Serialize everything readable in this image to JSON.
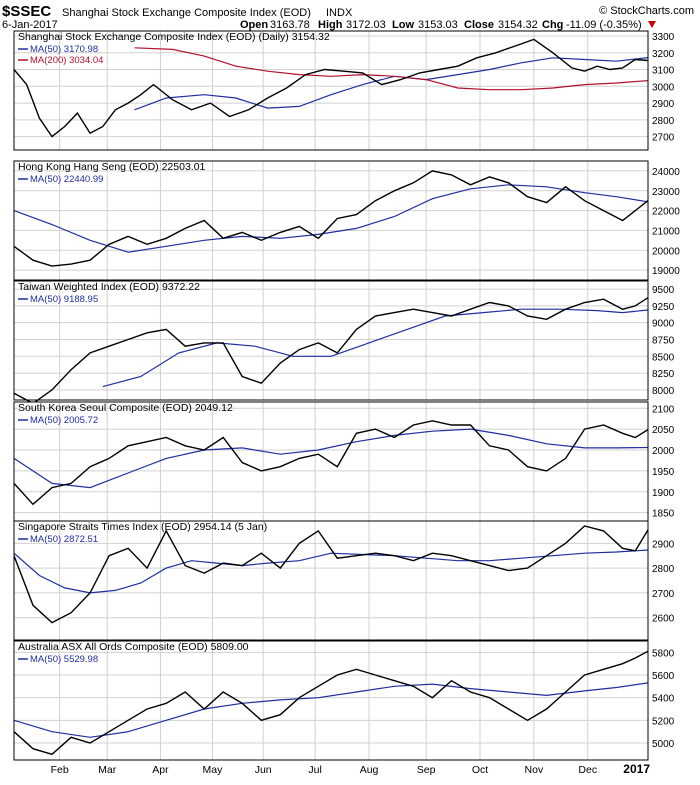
{
  "header": {
    "symbol": "$SSEC",
    "name": "Shanghai Stock Exchange Composite Index (EOD)",
    "exchange": "INDX",
    "watermark": "© StockCharts.com",
    "date": "6-Jan-2017",
    "open_label": "Open",
    "open": "3163.78",
    "high_label": "High",
    "high": "3172.03",
    "low_label": "Low",
    "low": "3153.03",
    "close_label": "Close",
    "close": "3154.32",
    "chg_label": "Chg",
    "chg": "-11.09 (-0.35%)",
    "down_color": "#cc0000"
  },
  "colors": {
    "price": "#000000",
    "ma50": "#1f2ea0",
    "ma200": "#b0112e",
    "grid": "#d0d0d0",
    "border": "#000000"
  },
  "chart_data": [
    {
      "type": "line",
      "title": "Shanghai Stock Exchange Composite Index (EOD) (Daily) 3154.32",
      "legend": [
        "MA(50) 3170.98",
        "MA(200) 3034.04"
      ],
      "yticks": [
        2700,
        2800,
        2900,
        3000,
        3100,
        3200,
        3300
      ],
      "ylim": [
        2620,
        3330
      ],
      "price_t": [
        0,
        0.02,
        0.04,
        0.06,
        0.08,
        0.1,
        0.12,
        0.14,
        0.16,
        0.18,
        0.2,
        0.22,
        0.25,
        0.28,
        0.31,
        0.34,
        0.37,
        0.4,
        0.43,
        0.46,
        0.49,
        0.52,
        0.55,
        0.58,
        0.61,
        0.64,
        0.67,
        0.7,
        0.73,
        0.76,
        0.79,
        0.82,
        0.85,
        0.88,
        0.9,
        0.92,
        0.94,
        0.96,
        0.98,
        1.0
      ],
      "price_v": [
        3100,
        3010,
        2810,
        2700,
        2760,
        2840,
        2720,
        2760,
        2860,
        2900,
        2950,
        3010,
        2920,
        2860,
        2900,
        2820,
        2860,
        2930,
        2990,
        3070,
        3100,
        3090,
        3080,
        3010,
        3040,
        3080,
        3100,
        3120,
        3170,
        3200,
        3240,
        3280,
        3200,
        3110,
        3090,
        3120,
        3100,
        3110,
        3160,
        3154
      ],
      "ma_t": [
        [
          0.19,
          0.24,
          0.3,
          0.35,
          0.4,
          0.45,
          0.5,
          0.55,
          0.6,
          0.65,
          0.7,
          0.75,
          0.8,
          0.85,
          0.9,
          0.95,
          1.0
        ],
        [
          0.19,
          0.25,
          0.3,
          0.35,
          0.4,
          0.45,
          0.5,
          0.55,
          0.6,
          0.65,
          0.7,
          0.75,
          0.8,
          0.85,
          0.9,
          0.95,
          1.0
        ]
      ],
      "ma_v": [
        [
          2860,
          2930,
          2950,
          2930,
          2870,
          2880,
          2950,
          3010,
          3060,
          3040,
          3070,
          3100,
          3140,
          3170,
          3160,
          3150,
          3171
        ],
        [
          3230,
          3220,
          3180,
          3120,
          3090,
          3070,
          3060,
          3070,
          3060,
          3040,
          2990,
          2980,
          2980,
          2990,
          3010,
          3020,
          3034
        ]
      ]
    },
    {
      "type": "line",
      "title": "Hong Kong Hang Seng (EOD) 22503.01",
      "legend": [
        "MA(50) 22440.99"
      ],
      "yticks": [
        19000,
        20000,
        21000,
        22000,
        23000,
        24000
      ],
      "ylim": [
        18500,
        24500
      ],
      "price_t": [
        0,
        0.03,
        0.06,
        0.09,
        0.12,
        0.15,
        0.18,
        0.21,
        0.24,
        0.27,
        0.3,
        0.33,
        0.36,
        0.39,
        0.42,
        0.45,
        0.48,
        0.51,
        0.54,
        0.57,
        0.6,
        0.63,
        0.66,
        0.69,
        0.72,
        0.75,
        0.78,
        0.81,
        0.84,
        0.87,
        0.9,
        0.93,
        0.96,
        0.98,
        1.0
      ],
      "price_v": [
        20200,
        19500,
        19200,
        19300,
        19500,
        20300,
        20700,
        20300,
        20600,
        21100,
        21500,
        20600,
        20900,
        20500,
        20900,
        21200,
        20600,
        21600,
        21800,
        22500,
        23000,
        23400,
        24000,
        23800,
        23300,
        23700,
        23400,
        22700,
        22400,
        23200,
        22500,
        22000,
        21500,
        22000,
        22503
      ],
      "ma_t": [
        [
          0,
          0.06,
          0.12,
          0.18,
          0.24,
          0.3,
          0.36,
          0.42,
          0.48,
          0.54,
          0.6,
          0.66,
          0.72,
          0.78,
          0.84,
          0.9,
          0.95,
          1.0
        ]
      ],
      "ma_v": [
        [
          22000,
          21300,
          20500,
          19900,
          20200,
          20500,
          20700,
          20600,
          20800,
          21100,
          21700,
          22600,
          23100,
          23300,
          23200,
          22900,
          22700,
          22441
        ]
      ]
    },
    {
      "type": "line",
      "title": "Taiwan Weighted Index (EOD) 9372.22",
      "legend": [
        "MA(50) 9188.95"
      ],
      "yticks": [
        8000,
        8250,
        8500,
        8750,
        9000,
        9250,
        9500
      ],
      "ylim": [
        7850,
        9620
      ],
      "price_t": [
        0,
        0.03,
        0.06,
        0.09,
        0.12,
        0.15,
        0.18,
        0.21,
        0.24,
        0.27,
        0.3,
        0.33,
        0.36,
        0.39,
        0.42,
        0.45,
        0.48,
        0.51,
        0.54,
        0.57,
        0.6,
        0.63,
        0.66,
        0.69,
        0.72,
        0.75,
        0.78,
        0.81,
        0.84,
        0.87,
        0.9,
        0.93,
        0.96,
        0.98,
        1.0
      ],
      "price_v": [
        7950,
        7800,
        8000,
        8300,
        8550,
        8650,
        8750,
        8850,
        8900,
        8650,
        8700,
        8700,
        8200,
        8100,
        8400,
        8600,
        8700,
        8550,
        8900,
        9100,
        9150,
        9200,
        9150,
        9100,
        9200,
        9300,
        9250,
        9100,
        9050,
        9200,
        9300,
        9350,
        9200,
        9250,
        9372
      ],
      "ma_t": [
        [
          0.14,
          0.2,
          0.26,
          0.32,
          0.38,
          0.44,
          0.5,
          0.56,
          0.62,
          0.68,
          0.74,
          0.8,
          0.86,
          0.92,
          0.96,
          1.0
        ]
      ],
      "ma_v": [
        [
          8050,
          8200,
          8550,
          8700,
          8650,
          8500,
          8500,
          8700,
          8900,
          9100,
          9150,
          9200,
          9200,
          9180,
          9150,
          9189
        ]
      ]
    },
    {
      "type": "line",
      "title": "South Korea Seoul Composite (EOD) 2049.12",
      "legend": [
        "MA(50) 2005.72"
      ],
      "yticks": [
        1850,
        1900,
        1950,
        2000,
        2050,
        2100
      ],
      "ylim": [
        1830,
        2115
      ],
      "price_t": [
        0,
        0.03,
        0.06,
        0.09,
        0.12,
        0.15,
        0.18,
        0.21,
        0.24,
        0.27,
        0.3,
        0.33,
        0.36,
        0.39,
        0.42,
        0.45,
        0.48,
        0.51,
        0.54,
        0.57,
        0.6,
        0.63,
        0.66,
        0.69,
        0.72,
        0.75,
        0.78,
        0.81,
        0.84,
        0.87,
        0.9,
        0.93,
        0.96,
        0.98,
        1.0
      ],
      "price_v": [
        1920,
        1870,
        1910,
        1920,
        1960,
        1980,
        2010,
        2020,
        2030,
        2010,
        2000,
        2030,
        1970,
        1950,
        1960,
        1980,
        1990,
        1960,
        2040,
        2050,
        2030,
        2060,
        2070,
        2060,
        2060,
        2010,
        2000,
        1960,
        1950,
        1980,
        2050,
        2060,
        2040,
        2030,
        2049
      ],
      "ma_t": [
        [
          0,
          0.06,
          0.12,
          0.18,
          0.24,
          0.3,
          0.36,
          0.42,
          0.48,
          0.54,
          0.6,
          0.66,
          0.72,
          0.78,
          0.84,
          0.9,
          0.95,
          1.0
        ]
      ],
      "ma_v": [
        [
          1980,
          1920,
          1910,
          1945,
          1980,
          2000,
          2005,
          1990,
          2000,
          2020,
          2035,
          2045,
          2050,
          2035,
          2015,
          2005,
          2005,
          2006
        ]
      ]
    },
    {
      "type": "line",
      "title": "Singapore Straits Times Index (EOD) 2954.14 (5 Jan)",
      "legend": [
        "MA(50) 2872.51"
      ],
      "yticks": [
        2600,
        2700,
        2800,
        2900
      ],
      "ylim": [
        2510,
        2990
      ],
      "price_t": [
        0,
        0.03,
        0.06,
        0.09,
        0.12,
        0.15,
        0.18,
        0.21,
        0.24,
        0.27,
        0.3,
        0.33,
        0.36,
        0.39,
        0.42,
        0.45,
        0.48,
        0.51,
        0.54,
        0.57,
        0.6,
        0.63,
        0.66,
        0.69,
        0.72,
        0.75,
        0.78,
        0.81,
        0.84,
        0.87,
        0.9,
        0.93,
        0.96,
        0.98,
        1.0
      ],
      "price_v": [
        2850,
        2650,
        2580,
        2620,
        2700,
        2850,
        2880,
        2800,
        2950,
        2810,
        2780,
        2820,
        2810,
        2860,
        2800,
        2900,
        2950,
        2840,
        2850,
        2860,
        2850,
        2830,
        2860,
        2850,
        2830,
        2810,
        2790,
        2800,
        2850,
        2900,
        2970,
        2950,
        2880,
        2870,
        2954
      ],
      "ma_t": [
        [
          0,
          0.04,
          0.08,
          0.12,
          0.16,
          0.2,
          0.24,
          0.28,
          0.32,
          0.36,
          0.4,
          0.45,
          0.5,
          0.55,
          0.6,
          0.65,
          0.7,
          0.75,
          0.8,
          0.85,
          0.9,
          0.95,
          1.0
        ]
      ],
      "ma_v": [
        [
          2860,
          2770,
          2720,
          2700,
          2710,
          2740,
          2800,
          2830,
          2820,
          2810,
          2820,
          2830,
          2860,
          2855,
          2850,
          2840,
          2830,
          2830,
          2840,
          2850,
          2860,
          2865,
          2873
        ]
      ]
    },
    {
      "type": "line",
      "title": "Australia ASX All Ords Composite (EOD) 5809.00",
      "legend": [
        "MA(50) 5529.98"
      ],
      "yticks": [
        5000,
        5200,
        5400,
        5600,
        5800
      ],
      "ylim": [
        4850,
        5900
      ],
      "price_t": [
        0,
        0.03,
        0.06,
        0.09,
        0.12,
        0.15,
        0.18,
        0.21,
        0.24,
        0.27,
        0.3,
        0.33,
        0.36,
        0.39,
        0.42,
        0.45,
        0.48,
        0.51,
        0.54,
        0.57,
        0.6,
        0.63,
        0.66,
        0.69,
        0.72,
        0.75,
        0.78,
        0.81,
        0.84,
        0.87,
        0.9,
        0.93,
        0.96,
        0.98,
        1.0
      ],
      "price_v": [
        5100,
        4950,
        4900,
        5050,
        5000,
        5100,
        5200,
        5300,
        5350,
        5450,
        5300,
        5450,
        5350,
        5200,
        5250,
        5400,
        5500,
        5600,
        5650,
        5600,
        5550,
        5500,
        5400,
        5550,
        5450,
        5400,
        5300,
        5200,
        5300,
        5450,
        5600,
        5650,
        5700,
        5750,
        5809
      ],
      "ma_t": [
        [
          0,
          0.06,
          0.12,
          0.18,
          0.24,
          0.3,
          0.36,
          0.42,
          0.48,
          0.54,
          0.6,
          0.66,
          0.72,
          0.78,
          0.84,
          0.9,
          0.95,
          1.0
        ]
      ],
      "ma_v": [
        [
          5200,
          5100,
          5050,
          5100,
          5200,
          5300,
          5350,
          5380,
          5400,
          5450,
          5500,
          5520,
          5480,
          5450,
          5420,
          5460,
          5490,
          5530
        ]
      ]
    }
  ],
  "xaxis": {
    "labels": [
      "Feb",
      "Mar",
      "Apr",
      "May",
      "Jun",
      "Jul",
      "Aug",
      "Sep",
      "Oct",
      "Nov",
      "Dec",
      "2017"
    ],
    "positions": [
      0.072,
      0.147,
      0.231,
      0.313,
      0.393,
      0.475,
      0.56,
      0.65,
      0.735,
      0.82,
      0.905,
      1.0
    ]
  }
}
